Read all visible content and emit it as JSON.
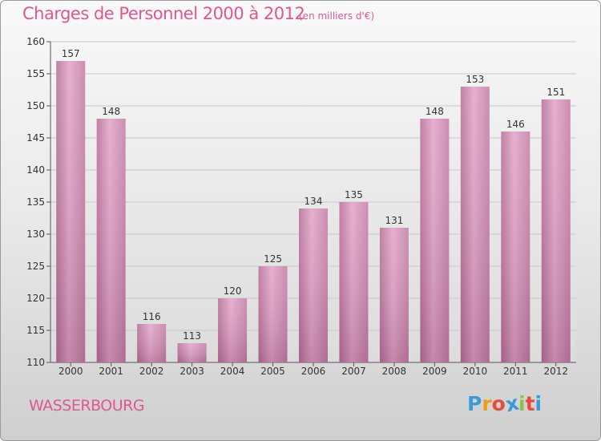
{
  "chart_data": {
    "type": "bar",
    "title": "Charges de Personnel 2000 à 2012",
    "subtitle": "(en milliers d'€)",
    "categories": [
      "2000",
      "2001",
      "2002",
      "2003",
      "2004",
      "2005",
      "2006",
      "2007",
      "2008",
      "2009",
      "2010",
      "2011",
      "2012"
    ],
    "values": [
      157,
      148,
      116,
      113,
      120,
      125,
      134,
      135,
      131,
      148,
      153,
      146,
      151
    ],
    "ylim": [
      110,
      160
    ],
    "yticks": [
      110,
      115,
      120,
      125,
      130,
      135,
      140,
      145,
      150,
      155,
      160
    ],
    "grid": true,
    "bar_color": "#d58fb5",
    "title_color": "#e0578f"
  },
  "footer": {
    "commune": "WASSERBOURG",
    "logo_letters": [
      "P",
      "r",
      "o",
      "x",
      "i",
      "t",
      "i"
    ],
    "logo_colors": [
      "#3b9ad9",
      "#f39c12",
      "#e74c3c",
      "#3b9ad9",
      "#8bc34a",
      "#e74c3c",
      "#3b9ad9"
    ]
  }
}
